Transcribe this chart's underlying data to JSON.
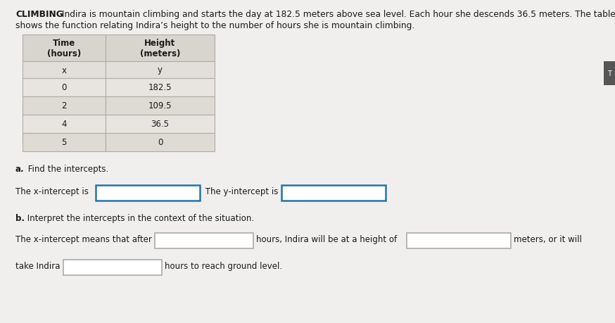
{
  "title_bold": "CLIMBING",
  "title_rest": " Indira is mountain climbing and starts the day at 182.5 meters above sea level. Each hour she descends 36.5 meters. The table",
  "title_line2": "shows the function relating Indira’s height to the number of hours she is mountain climbing.",
  "table_headers": [
    "Time\n(hours)",
    "Height\n(meters)"
  ],
  "table_xy": [
    "x",
    "y"
  ],
  "table_data": [
    [
      "0",
      "182.5"
    ],
    [
      "2",
      "109.5"
    ],
    [
      "4",
      "36.5"
    ],
    [
      "5",
      "0"
    ]
  ],
  "part_a_label": "a.",
  "part_a_rest": " Find the intercepts.",
  "x_intercept_label": "The x-intercept is",
  "y_intercept_label": " The y-intercept is",
  "part_b_bold": "b.",
  "part_b_rest": " Interpret the intercepts in the context of the situation.",
  "sentence1_pre": "The x-intercept means that after",
  "sentence1_mid": "hours, Indira will be at a height of",
  "sentence1_post": "meters, or it will",
  "sentence2_pre": "take Indira",
  "sentence2_post": "hours to reach ground level.",
  "bg_color": "#e8e8e8",
  "page_color": "#f0efed",
  "table_header_bg": "#d8d5ce",
  "table_xy_bg": "#e2dfda",
  "table_row_bg": [
    "#e8e5e0",
    "#dedad4"
  ],
  "table_border_color": "#b0aca4",
  "text_color": "#1a1a1a",
  "input_box_color": "#ffffff",
  "input_box_border_blue": "#2472a8",
  "input_box_border_gray": "#aaaaaa",
  "font_size_title": 8.8,
  "font_size_body": 8.5,
  "font_size_table": 8.5,
  "tab_color": "#555555"
}
